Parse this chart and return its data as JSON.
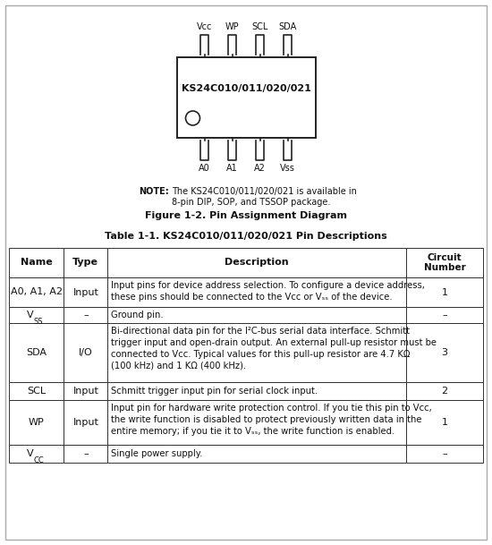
{
  "bg_color": "#ffffff",
  "fig_caption": "Figure 1-2. Pin Assignment Diagram",
  "table_title": "Table 1-1. KS24C010/011/020/021 Pin Descriptions",
  "chip_label": "KS24C010/011/020/021",
  "top_pins": [
    "Vcc",
    "WP",
    "SCL",
    "SDA"
  ],
  "bottom_pins": [
    "A0",
    "A1",
    "A2",
    "Vss"
  ],
  "note_label": "NOTE:",
  "note_body1": "The KS24C010/011/020/021 is available in",
  "note_body2": "8-pin DIP, SOP, and TSSOP package.",
  "table_headers": [
    "Name",
    "Type",
    "Description",
    "Circuit\nNumber"
  ],
  "name_texts": [
    "A0, A1, A2",
    "V",
    "SDA",
    "SCL",
    "WP",
    "V"
  ],
  "name_subs": [
    "",
    "SS",
    "",
    "",
    "",
    "CC"
  ],
  "type_texts": [
    "Input",
    "–",
    "I/O",
    "Input",
    "Input",
    "–"
  ],
  "circ_texts": [
    "1",
    "–",
    "3",
    "2",
    "1",
    "–"
  ],
  "desc_texts": [
    "Input pins for device address selection. To configure a device address,\nthese pins should be connected to the Vᴄᴄ or Vₛₛ of the device.",
    "Ground pin.",
    "Bi-directional data pin for the I²C-bus serial data interface. Schmitt\ntrigger input and open-drain output. An external pull-up resistor must be\nconnected to Vᴄᴄ. Typical values for this pull-up resistor are 4.7 KΩ\n(100 kHz) and 1 KΩ (400 kHz).",
    "Schmitt trigger input pin for serial clock input.",
    "Input pin for hardware write protection control. If you tie this pin to Vᴄᴄ,\nthe write function is disabled to protect previously written data in the\nentire memory; if you tie it to Vₛₛ, the write function is enabled.",
    "Single power supply."
  ]
}
